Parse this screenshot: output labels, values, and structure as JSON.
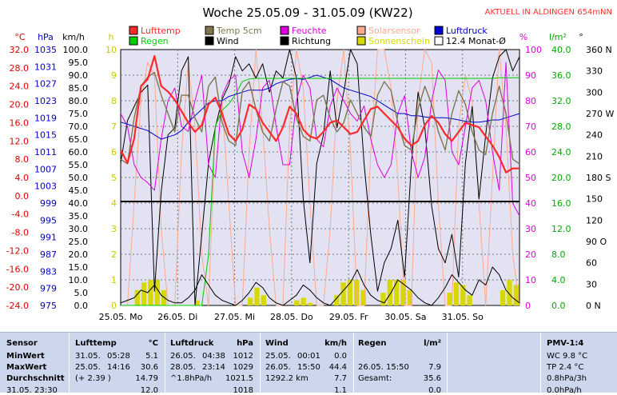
{
  "chart_data": {
    "type": "line",
    "title": "Woche 25.05.09 - 31.05.09 (KW22)",
    "station_label": "AKTUELL IN ALDINGEN 654mNN",
    "x_labels": [
      "25.05. Mo",
      "26.05. Di",
      "27.05. Mi",
      "28.05. Do",
      "29.05. Fr",
      "30.05. Sa",
      "31.05. So"
    ],
    "days": 7,
    "legend": [
      {
        "name": "Lufttemp",
        "color": "#ff2a2a"
      },
      {
        "name": "Temp 5cm",
        "color": "#7d7750"
      },
      {
        "name": "Feuchte",
        "color": "#dd00dd"
      },
      {
        "name": "Solarsensor",
        "color": "#ffa98e"
      },
      {
        "name": "Luftdruck",
        "color": "#0000cc"
      },
      {
        "name": "Regen",
        "color": "#00cc00"
      },
      {
        "name": "Wind",
        "color": "#000000"
      },
      {
        "name": "Richtung",
        "color": "#000000"
      },
      {
        "name": "Sonnenschein",
        "color": "#d8d800"
      },
      {
        "name": "12.4 Monat-Ø",
        "color": "#ffffff"
      }
    ],
    "axes": {
      "temp": {
        "unit": "°C",
        "ticks": [
          32.0,
          28.0,
          24.0,
          20.0,
          16.0,
          12.0,
          8.0,
          4.0,
          0.0,
          -4.0,
          -8.0,
          -12.0,
          -16.0,
          -20.0,
          -24.0
        ],
        "color": "#e00000"
      },
      "pressure": {
        "unit": "hPa",
        "ticks": [
          1035,
          1031,
          1027,
          1023,
          1019,
          1015,
          1011,
          1007,
          1003,
          999,
          995,
          991,
          987,
          983,
          979,
          975
        ],
        "color": "#0000cc"
      },
      "wind": {
        "unit": "km/h",
        "ticks": [
          100.0,
          95.0,
          90.0,
          85.0,
          80.0,
          75.0,
          70.0,
          65.0,
          60.0,
          55.0,
          50.0,
          45.0,
          40.0,
          35.0,
          30.0,
          25.0,
          20.0,
          15.0,
          10.0,
          5.0,
          0.0
        ],
        "color": "#000000"
      },
      "sunshine": {
        "unit": "h",
        "ticks": [
          10,
          9,
          8,
          7,
          6,
          5,
          4,
          3,
          2,
          1,
          0
        ],
        "color": "#c8c800"
      },
      "humidity": {
        "unit": "%",
        "ticks": [
          100,
          90,
          80,
          70,
          60,
          50,
          40,
          30,
          20,
          10,
          0
        ],
        "color": "#dd00dd"
      },
      "rain": {
        "unit": "l/m²",
        "ticks": [
          40.0,
          36.0,
          32.0,
          28.0,
          24.0,
          20.0,
          16.0,
          12.0,
          8.0,
          4.0,
          0.0
        ],
        "color": "#00aa00"
      },
      "direction": {
        "unit": "°",
        "ticks": [
          "360 N",
          "330",
          "300",
          "270 W",
          "240",
          "210",
          "180 S",
          "150",
          "120",
          "90 O",
          "60",
          "30",
          "0 N"
        ],
        "color": "#000000"
      }
    },
    "series": [
      {
        "name": "Lufttemp",
        "unit": "°C",
        "color": "#ff2a2a",
        "values": [
          10.0,
          7.2,
          12.5,
          24.0,
          25.5,
          30.6,
          24.0,
          22.8,
          21.0,
          18.5,
          16.0,
          14.0,
          15.5,
          20.0,
          21.5,
          18.0,
          13.5,
          12.0,
          14.5,
          20.0,
          19.0,
          16.0,
          14.0,
          12.0,
          15.0,
          19.5,
          18.0,
          14.5,
          13.0,
          12.5,
          14.0,
          16.0,
          16.5,
          15.0,
          13.5,
          14.0,
          16.5,
          19.0,
          19.5,
          18.0,
          16.5,
          15.0,
          12.5,
          11.0,
          12.0,
          15.5,
          17.5,
          16.0,
          13.5,
          12.0,
          14.0,
          16.0,
          15.5,
          15.0,
          13.0,
          11.0,
          8.5,
          5.1,
          6.0,
          6.0
        ]
      },
      {
        "name": "Temp 5cm",
        "unit": "°C",
        "color": "#7d7750",
        "values": [
          8.0,
          7.0,
          17.0,
          24.0,
          26.0,
          27.0,
          22.0,
          18.0,
          14.0,
          22.0,
          22.0,
          17.0,
          14.0,
          24.0,
          26.0,
          16.0,
          12.0,
          11.0,
          23.0,
          25.0,
          19.0,
          14.0,
          12.0,
          19.0,
          25.0,
          24.0,
          17.0,
          13.0,
          12.0,
          21.0,
          22.0,
          17.0,
          14.0,
          16.0,
          21.0,
          18.0,
          15.0,
          13.0,
          22.0,
          25.0,
          23.0,
          16.0,
          11.0,
          10.0,
          19.0,
          24.0,
          20.0,
          14.0,
          10.0,
          18.0,
          23.0,
          20.0,
          14.0,
          10.0,
          9.0,
          18.0,
          24.0,
          18.0,
          8.0,
          7.0
        ]
      },
      {
        "name": "Feuchte",
        "unit": "%",
        "color": "#dd00dd",
        "values": [
          75,
          70,
          55,
          50,
          48,
          45,
          65,
          80,
          85,
          70,
          68,
          80,
          90,
          55,
          50,
          82,
          88,
          90,
          60,
          50,
          65,
          85,
          88,
          70,
          55,
          55,
          80,
          90,
          85,
          65,
          62,
          78,
          85,
          80,
          75,
          72,
          78,
          65,
          55,
          50,
          55,
          75,
          82,
          60,
          50,
          58,
          80,
          92,
          88,
          60,
          55,
          70,
          85,
          88,
          80,
          60,
          45,
          95,
          40,
          35
        ]
      },
      {
        "name": "Luftdruck",
        "unit": "hPa",
        "color": "#0000cc",
        "values": [
          1018,
          1017.5,
          1017,
          1016.5,
          1016,
          1015,
          1014,
          1014.5,
          1015,
          1016,
          1018,
          1019.5,
          1021,
          1022.5,
          1023,
          1023,
          1024,
          1024.5,
          1025,
          1025.5,
          1025.5,
          1025.5,
          1026,
          1027,
          1027.5,
          1028,
          1028.2,
          1028,
          1028.5,
          1029,
          1028.5,
          1028,
          1027,
          1026,
          1025.5,
          1025,
          1024.5,
          1024,
          1023,
          1022,
          1021,
          1020,
          1020,
          1019.5,
          1019.5,
          1019.2,
          1019,
          1019,
          1019,
          1018.8,
          1018.5,
          1018.2,
          1018,
          1018,
          1018.2,
          1018.5,
          1018.5,
          1019,
          1019.5,
          1020
        ]
      },
      {
        "name": "Regen",
        "unit": "l/m²",
        "color": "#00cc00",
        "values": [
          0,
          0,
          0,
          0,
          0,
          0,
          0,
          0,
          0,
          0,
          0,
          0,
          0,
          7.9,
          28.0,
          30.5,
          31.5,
          33.0,
          35.0,
          35.4,
          35.5,
          35.5,
          35.5,
          35.5,
          35.5,
          35.5,
          35.5,
          35.5,
          35.5,
          35.5,
          35.5,
          35.5,
          35.5,
          35.5,
          35.5,
          35.5,
          35.5,
          35.5,
          35.5,
          35.5,
          35.5,
          35.5,
          35.5,
          35.5,
          35.5,
          35.5,
          35.5,
          35.5,
          35.5,
          35.5,
          35.5,
          35.5,
          35.5,
          35.5,
          35.5,
          35.5,
          35.6,
          35.6,
          35.6,
          35.6
        ]
      },
      {
        "name": "Wind",
        "unit": "km/h",
        "color": "#000000",
        "values": [
          1,
          2,
          3,
          6,
          5,
          8,
          4,
          2,
          1,
          1,
          3,
          6,
          12,
          8,
          4,
          2,
          1,
          0,
          2,
          5,
          9,
          7,
          3,
          1,
          0,
          2,
          4,
          8,
          6,
          3,
          1,
          0,
          3,
          6,
          9,
          14,
          8,
          4,
          2,
          1,
          5,
          10,
          8,
          6,
          3,
          1,
          0,
          3,
          7,
          12,
          9,
          6,
          4,
          10,
          8,
          15,
          12,
          6,
          3,
          1
        ]
      },
      {
        "name": "Richtung",
        "unit": "°",
        "color": "#000000",
        "values": [
          200,
          260,
          280,
          300,
          310,
          20,
          160,
          240,
          250,
          330,
          350,
          0,
          100,
          200,
          250,
          290,
          310,
          350,
          330,
          340,
          320,
          340,
          300,
          330,
          320,
          360,
          320,
          150,
          60,
          200,
          240,
          330,
          250,
          300,
          360,
          340,
          200,
          100,
          20,
          60,
          80,
          120,
          40,
          200,
          300,
          250,
          140,
          80,
          60,
          100,
          40,
          200,
          280,
          150,
          240,
          320,
          350,
          360,
          330,
          350
        ]
      },
      {
        "name": "Solarsensor",
        "unit": "rel",
        "color": "#ffa98e",
        "values": [
          0,
          0,
          40,
          80,
          95,
          90,
          30,
          0,
          0,
          60,
          95,
          70,
          20,
          0,
          70,
          80,
          40,
          0,
          0,
          60,
          100,
          70,
          30,
          0,
          0,
          70,
          100,
          85,
          40,
          0,
          0,
          30,
          80,
          100,
          60,
          0,
          0,
          60,
          100,
          100,
          85,
          50,
          0,
          0,
          80,
          100,
          95,
          40,
          0,
          0,
          70,
          90,
          80,
          40,
          0,
          50,
          100,
          70,
          20,
          0
        ]
      }
    ],
    "sunshine_hours": [
      0,
      0,
      0.6,
      0.9,
      1.0,
      1.0,
      0.6,
      0,
      0,
      0,
      0,
      0.2,
      0,
      0,
      0,
      0,
      0,
      0,
      0,
      0.3,
      0.7,
      0.4,
      0,
      0,
      0,
      0,
      0.2,
      0.3,
      0.1,
      0,
      0,
      0,
      0.4,
      0.9,
      1.0,
      1.0,
      0.6,
      0,
      0,
      0.5,
      1.0,
      1.0,
      1.0,
      0.6,
      0,
      0,
      0,
      0,
      0,
      0.5,
      0.9,
      0.8,
      0.4,
      0,
      0,
      0,
      0,
      0.6,
      1.0,
      0.8
    ]
  },
  "stats": {
    "sensor": {
      "header": "Sensor",
      "rows": [
        "MinWert",
        "MaxWert",
        "Durchschnitt"
      ],
      "cut": "31.05. 23:30"
    },
    "temp": {
      "header": "Lufttemp",
      "unit": "°C",
      "rows": [
        [
          "31.05.",
          "05:28",
          "5.1"
        ],
        [
          "25.05.",
          "14:16",
          "30.6"
        ],
        [
          "(+ 2.39 )",
          "",
          "14.79"
        ]
      ],
      "cut": "12.0"
    },
    "pressure": {
      "header": "Luftdruck",
      "unit": "hPa",
      "rows": [
        [
          "26.05.",
          "04:38",
          "1012"
        ],
        [
          "28.05.",
          "23:14",
          "1029"
        ],
        [
          "^1.8hPa/h",
          "",
          "1021.5"
        ]
      ],
      "cut": "1018"
    },
    "wind": {
      "header": "Wind",
      "unit": "km/h",
      "rows": [
        [
          "25.05.",
          "00:01",
          "0.0"
        ],
        [
          "26.05.",
          "15:50",
          "44.4"
        ],
        [
          "1292.2 km",
          "",
          "7.7"
        ]
      ],
      "cut": "1.1"
    },
    "rain": {
      "header": "Regen",
      "unit": "l/m²",
      "rows": [
        [
          "",
          ""
        ],
        [
          "26.05. 15:50",
          "7.9"
        ],
        [
          "Gesamt:",
          "35.6"
        ]
      ],
      "cut": "0.0"
    },
    "pmv": {
      "header": "PMV-1:4",
      "rows": [
        "WC 9.8 °C",
        "TP 2.4 °C",
        "0.8hPa/3h"
      ],
      "cut": "0.0hPa/h"
    }
  }
}
